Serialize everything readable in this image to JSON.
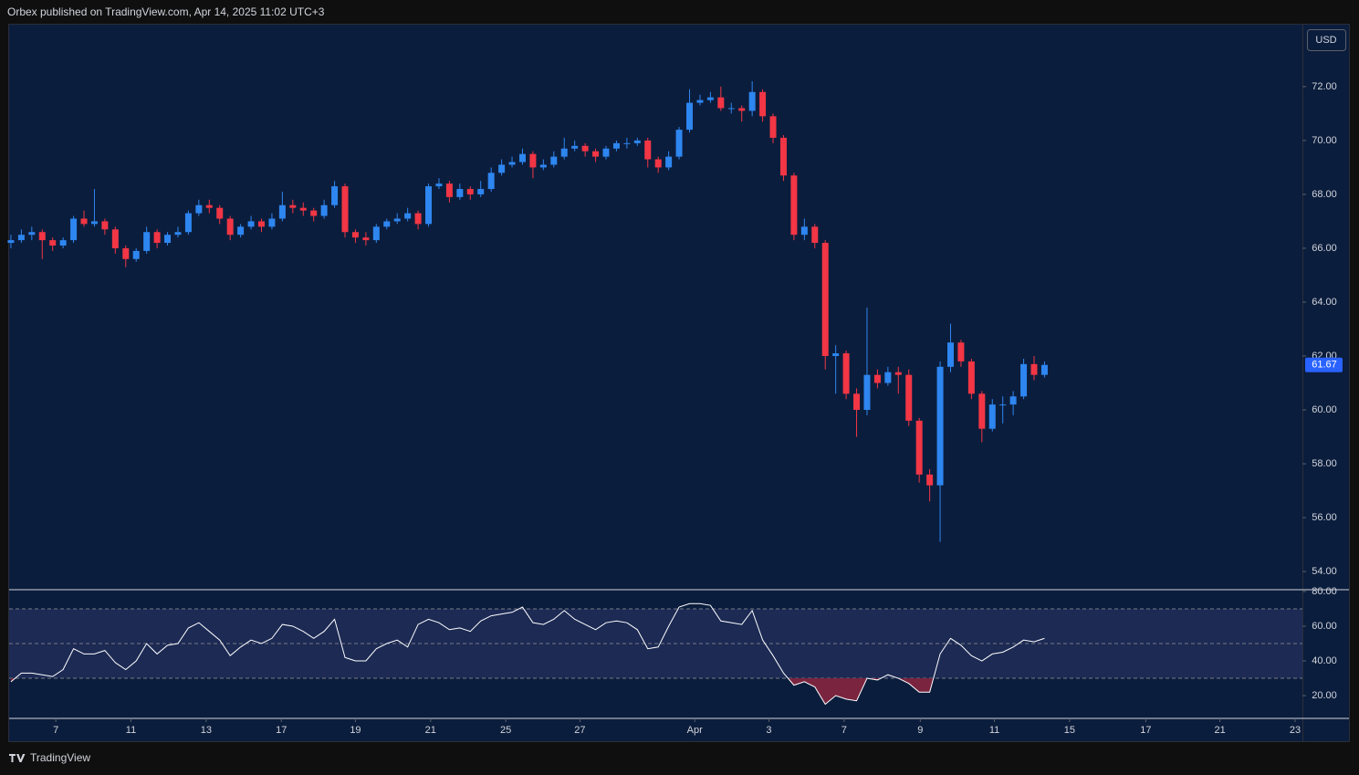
{
  "header": "Orbex published on TradingView.com, Apr 14, 2025 11:02 UTC+3",
  "currency": "USD",
  "footer": "TradingView",
  "chart_data": [
    {
      "type": "candlestick",
      "up_color": "#2e86f0",
      "down_color": "#f23645",
      "last_color": "#2962ff",
      "grid": false,
      "xlim": [
        -0.17,
        123.7
      ],
      "ylim": [
        53.36,
        74.3
      ],
      "yticks": [
        {
          "value": 54,
          "label": "54.00"
        },
        {
          "value": 56,
          "label": "56.00"
        },
        {
          "value": 58,
          "label": "58.00"
        },
        {
          "value": 60,
          "label": "60.00"
        },
        {
          "value": 62,
          "label": "62.00"
        },
        {
          "value": 64,
          "label": "64.00"
        },
        {
          "value": 66,
          "label": "66.00"
        },
        {
          "value": 68,
          "label": "68.00"
        },
        {
          "value": 70,
          "label": "70.00"
        },
        {
          "value": 72,
          "label": "72.00"
        }
      ],
      "x": [
        0,
        1,
        2,
        3,
        4,
        5,
        6,
        7,
        8,
        9,
        10,
        11,
        12,
        13,
        14,
        15,
        16,
        17,
        18,
        19,
        20,
        21,
        22,
        23,
        24,
        25,
        26,
        27,
        28,
        29,
        30,
        31,
        32,
        33,
        34,
        35,
        36,
        37,
        38,
        39,
        40,
        41,
        42,
        43,
        44,
        45,
        46,
        47,
        48,
        49,
        50,
        51,
        52,
        53,
        54,
        55,
        56,
        57,
        58,
        59,
        60,
        61,
        62,
        63,
        64,
        65,
        66,
        67,
        68,
        69,
        70,
        71,
        72,
        73,
        74,
        75,
        76,
        77,
        78,
        79,
        80,
        81,
        82,
        83,
        84,
        85,
        86,
        87,
        88,
        89,
        90,
        91,
        92,
        93,
        94,
        95,
        96,
        97,
        98,
        99
      ],
      "open": [
        66.2,
        66.3,
        66.5,
        66.6,
        66.3,
        66.1,
        66.3,
        67.1,
        66.9,
        67.0,
        66.7,
        66.0,
        65.6,
        65.9,
        66.6,
        66.2,
        66.5,
        66.6,
        67.3,
        67.6,
        67.5,
        67.1,
        66.5,
        66.8,
        67.0,
        66.8,
        67.1,
        67.6,
        67.5,
        67.4,
        67.2,
        67.6,
        68.3,
        66.6,
        66.4,
        66.3,
        66.8,
        67.0,
        67.1,
        67.3,
        66.9,
        68.3,
        68.4,
        67.9,
        68.2,
        68.0,
        68.2,
        68.8,
        69.1,
        69.2,
        69.5,
        69.0,
        69.1,
        69.4,
        69.7,
        69.8,
        69.6,
        69.4,
        69.7,
        69.9,
        69.9,
        70.0,
        69.3,
        69.0,
        69.4,
        70.4,
        71.4,
        71.5,
        71.6,
        71.2,
        71.2,
        71.1,
        71.8,
        70.9,
        70.1,
        68.7,
        66.5,
        66.8,
        66.2,
        62.0,
        62.1,
        60.6,
        60.0,
        61.3,
        61.0,
        61.4,
        61.3,
        59.6,
        57.6,
        57.2,
        61.6,
        62.5,
        61.8,
        60.6,
        59.3,
        60.2,
        60.2,
        60.5,
        61.7,
        61.3
      ],
      "high": [
        66.5,
        66.7,
        66.8,
        66.7,
        66.4,
        66.4,
        67.2,
        67.4,
        68.2,
        67.1,
        66.8,
        66.1,
        66.0,
        66.8,
        66.7,
        66.6,
        66.8,
        67.4,
        67.8,
        67.8,
        67.6,
        67.2,
        66.9,
        67.2,
        67.1,
        67.3,
        68.1,
        67.8,
        67.7,
        67.5,
        67.8,
        68.5,
        68.4,
        66.7,
        66.6,
        66.9,
        67.1,
        67.3,
        67.5,
        67.4,
        68.4,
        68.6,
        68.5,
        68.4,
        68.3,
        68.5,
        69.0,
        69.3,
        69.4,
        69.7,
        69.6,
        69.3,
        69.6,
        70.1,
        70.0,
        69.9,
        69.7,
        69.8,
        70.0,
        70.1,
        70.1,
        70.1,
        69.4,
        69.6,
        70.5,
        71.9,
        71.7,
        71.8,
        72.0,
        71.4,
        71.3,
        72.2,
        71.9,
        71.0,
        70.2,
        68.8,
        67.1,
        66.9,
        66.3,
        62.4,
        62.2,
        60.8,
        63.8,
        61.5,
        61.6,
        61.6,
        61.5,
        59.7,
        57.8,
        61.8,
        63.2,
        62.6,
        61.9,
        60.7,
        60.4,
        60.5,
        60.7,
        61.9,
        62.0,
        61.8
      ],
      "low": [
        66.0,
        66.2,
        66.3,
        65.6,
        65.9,
        66.0,
        66.2,
        66.8,
        66.8,
        66.5,
        65.8,
        65.3,
        65.5,
        65.8,
        66.0,
        66.1,
        66.4,
        66.5,
        67.2,
        67.3,
        66.9,
        66.3,
        66.4,
        66.7,
        66.6,
        66.7,
        67.0,
        67.3,
        67.2,
        67.0,
        67.1,
        67.5,
        66.4,
        66.2,
        66.1,
        66.2,
        66.7,
        66.9,
        67.0,
        66.7,
        66.8,
        68.2,
        67.7,
        67.8,
        67.8,
        67.9,
        68.1,
        68.7,
        69.0,
        69.1,
        68.6,
        68.9,
        69.0,
        69.3,
        69.6,
        69.4,
        69.2,
        69.3,
        69.6,
        69.7,
        69.8,
        69.0,
        68.8,
        68.9,
        69.3,
        70.3,
        71.3,
        71.4,
        71.1,
        71.0,
        70.7,
        70.9,
        70.7,
        69.9,
        68.5,
        66.3,
        66.3,
        66.0,
        61.5,
        60.6,
        60.4,
        59.0,
        59.8,
        60.8,
        60.9,
        60.6,
        59.4,
        57.3,
        56.6,
        55.1,
        61.4,
        61.6,
        60.4,
        58.8,
        59.2,
        59.5,
        59.8,
        60.4,
        61.1,
        61.2
      ],
      "close": [
        66.3,
        66.5,
        66.6,
        66.3,
        66.1,
        66.3,
        67.1,
        66.9,
        67.0,
        66.7,
        66.0,
        65.6,
        65.9,
        66.6,
        66.2,
        66.5,
        66.6,
        67.3,
        67.6,
        67.5,
        67.1,
        66.5,
        66.8,
        67.0,
        66.8,
        67.1,
        67.6,
        67.5,
        67.4,
        67.2,
        67.6,
        68.3,
        66.6,
        66.4,
        66.3,
        66.8,
        67.0,
        67.1,
        67.3,
        66.9,
        68.3,
        68.4,
        67.9,
        68.2,
        68.0,
        68.2,
        68.8,
        69.1,
        69.2,
        69.5,
        69.0,
        69.1,
        69.4,
        69.7,
        69.8,
        69.6,
        69.4,
        69.7,
        69.9,
        69.9,
        70.0,
        69.3,
        69.0,
        69.4,
        70.4,
        71.4,
        71.5,
        71.6,
        71.2,
        71.2,
        71.1,
        71.8,
        70.9,
        70.1,
        68.7,
        66.5,
        66.8,
        66.2,
        62.0,
        62.1,
        60.6,
        60.0,
        61.3,
        61.0,
        61.4,
        61.3,
        59.6,
        57.6,
        57.2,
        61.6,
        62.5,
        61.8,
        60.6,
        59.3,
        60.2,
        60.2,
        60.5,
        61.7,
        61.3,
        61.67
      ]
    },
    {
      "type": "line",
      "color": "#ffffff",
      "band_color": "#1c2a54",
      "oversold_color": "#7a2440",
      "level_color": "#787b86",
      "xlim": [
        -0.17,
        123.7
      ],
      "ylim": [
        7.4,
        80.5
      ],
      "yticks": [
        {
          "value": 20,
          "label": "20.00"
        },
        {
          "value": 40,
          "label": "40.00"
        },
        {
          "value": 60,
          "label": "60.00"
        },
        {
          "value": 80,
          "label": "80.00"
        }
      ],
      "levels": [
        70,
        50,
        30
      ],
      "xticks": [
        {
          "value": 4.3,
          "label": "7"
        },
        {
          "value": 11.5,
          "label": "11"
        },
        {
          "value": 18.7,
          "label": "13"
        },
        {
          "value": 25.9,
          "label": "17"
        },
        {
          "value": 33.0,
          "label": "19"
        },
        {
          "value": 40.2,
          "label": "21"
        },
        {
          "value": 47.4,
          "label": "25"
        },
        {
          "value": 54.5,
          "label": "27"
        },
        {
          "value": 65.5,
          "label": "Apr"
        },
        {
          "value": 72.6,
          "label": "3"
        },
        {
          "value": 79.8,
          "label": "7"
        },
        {
          "value": 87.1,
          "label": "9"
        },
        {
          "value": 94.2,
          "label": "11"
        },
        {
          "value": 101.4,
          "label": "15"
        },
        {
          "value": 108.7,
          "label": "17"
        },
        {
          "value": 115.8,
          "label": "21"
        },
        {
          "value": 123.0,
          "label": "23"
        }
      ],
      "x": [
        0,
        1,
        2,
        3,
        4,
        5,
        6,
        7,
        8,
        9,
        10,
        11,
        12,
        13,
        14,
        15,
        16,
        17,
        18,
        19,
        20,
        21,
        22,
        23,
        24,
        25,
        26,
        27,
        28,
        29,
        30,
        31,
        32,
        33,
        34,
        35,
        36,
        37,
        38,
        39,
        40,
        41,
        42,
        43,
        44,
        45,
        46,
        47,
        48,
        49,
        50,
        51,
        52,
        53,
        54,
        55,
        56,
        57,
        58,
        59,
        60,
        61,
        62,
        63,
        64,
        65,
        66,
        67,
        68,
        69,
        70,
        71,
        72,
        73,
        74,
        75,
        76,
        77,
        78,
        79,
        80,
        81,
        82,
        83,
        84,
        85,
        86,
        87,
        88,
        89,
        90,
        91,
        92,
        93,
        94,
        95,
        96,
        97,
        98,
        99
      ],
      "values": [
        28,
        33,
        33,
        32,
        31,
        35,
        47,
        44,
        44,
        46,
        39,
        35,
        40,
        50,
        44,
        49,
        50,
        59,
        62,
        57,
        52,
        43,
        48,
        52,
        50,
        53,
        61,
        60,
        57,
        53,
        57,
        64,
        42,
        40,
        40,
        47,
        50,
        52,
        48,
        61,
        64,
        62,
        58,
        59,
        57,
        63,
        66,
        67,
        68,
        71,
        62,
        61,
        64,
        69,
        64,
        61,
        58,
        62,
        63,
        62,
        58,
        47,
        48,
        60,
        71,
        73,
        73,
        72,
        63,
        62,
        61,
        69,
        52,
        43,
        33,
        26,
        28,
        25,
        15,
        20,
        18,
        17,
        30,
        29,
        32,
        30,
        27,
        22,
        22,
        44,
        53,
        49,
        43,
        40,
        44,
        45,
        48,
        52,
        51,
        53
      ]
    }
  ]
}
